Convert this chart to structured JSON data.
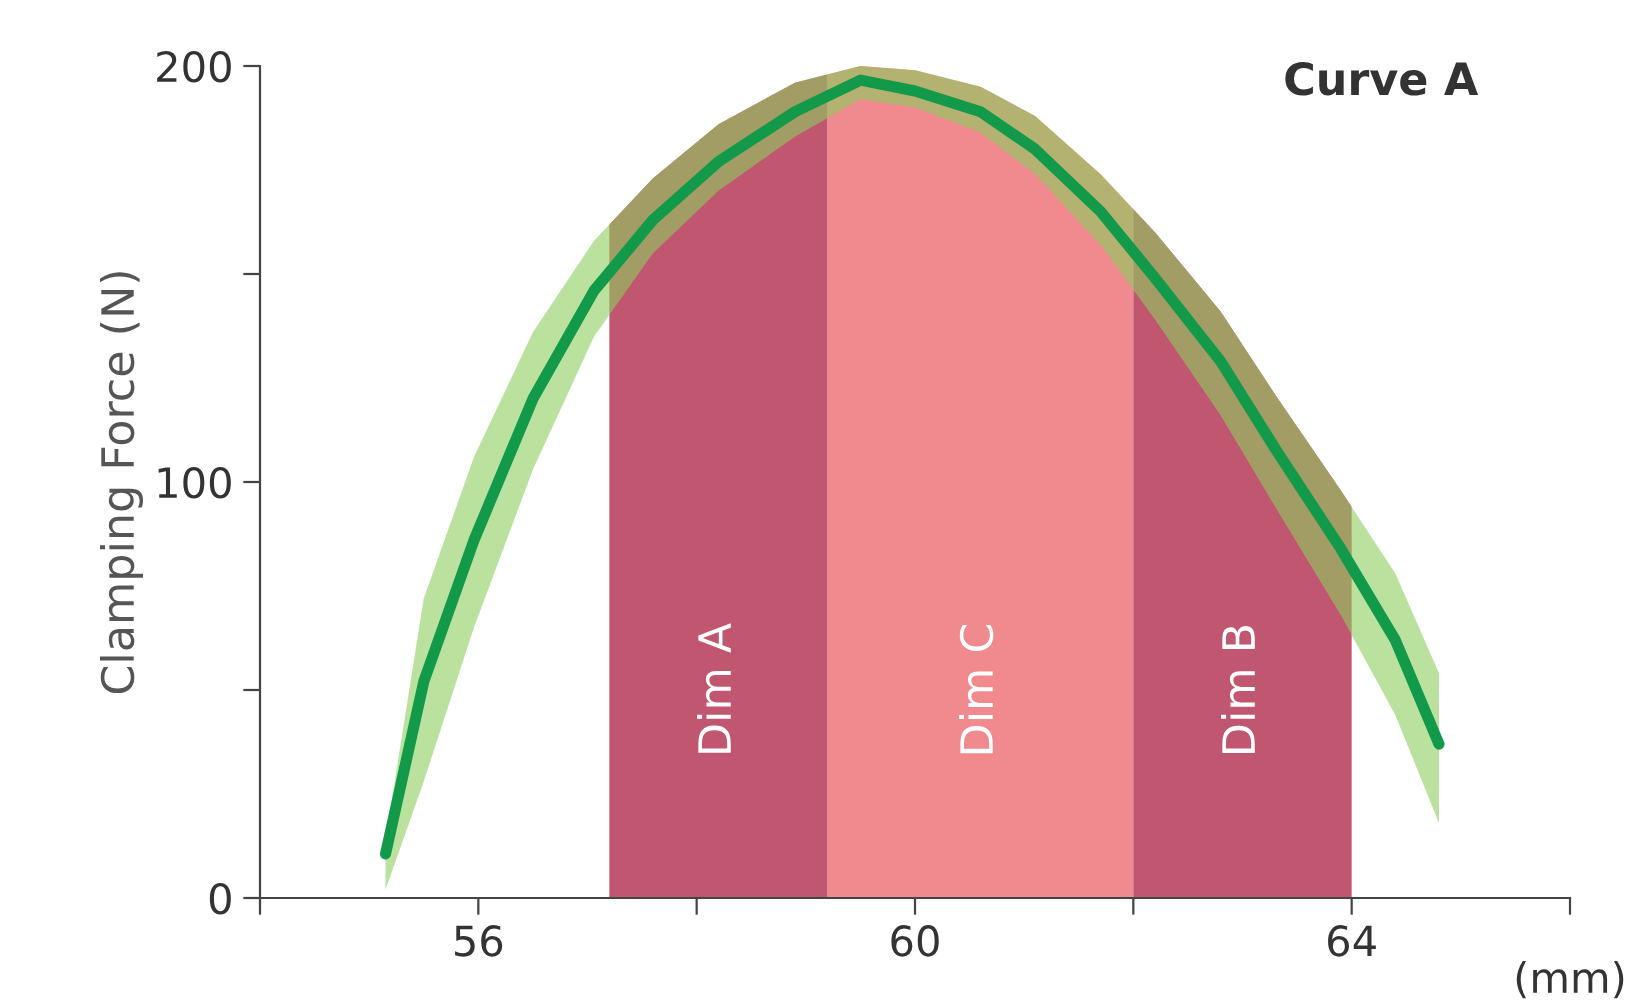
{
  "chart_data": {
    "type": "line",
    "title": "Curve A",
    "xlabel": "(mm)",
    "ylabel": "Clamping Force (N)",
    "xlim": [
      54,
      66
    ],
    "xticks": [
      {
        "value": 54,
        "label": null
      },
      56,
      {
        "value": 58,
        "label": null
      },
      60,
      {
        "value": 62,
        "label": null
      },
      64,
      {
        "value": 66,
        "label": null
      }
    ],
    "ylim": [
      0,
      200
    ],
    "yticks": [
      0,
      {
        "value": 50,
        "label": null
      },
      100,
      {
        "value": 150,
        "label": null
      },
      200
    ],
    "grid": false,
    "legend": false,
    "series": [
      {
        "color": "#12994a",
        "x": [
          55.15,
          55.5,
          55.96,
          56.5,
          57.06,
          57.6,
          58.2,
          58.9,
          59.5,
          60,
          60.6,
          61.1,
          61.7,
          62.2,
          62.8,
          63.3,
          63.9,
          64.4,
          64.8
        ],
        "values": [
          10.6,
          52,
          86,
          120,
          146,
          163,
          177,
          189,
          196.6,
          194,
          189,
          180,
          165,
          149,
          129,
          108,
          84,
          62,
          37
        ],
        "lower": [
          2,
          28,
          65,
          103,
          135,
          155,
          170,
          183,
          192,
          190,
          184,
          174,
          157,
          139,
          116,
          94,
          68,
          44,
          18
        ],
        "upper": [
          14,
          72,
          106,
          136,
          158,
          173,
          186,
          196,
          200,
          199,
          195,
          188,
          174,
          160,
          141,
          121,
          98,
          78,
          54
        ]
      }
    ],
    "bands": [
      {
        "axis": "x",
        "from": 57.2,
        "to": 59.2,
        "label": "Dim A",
        "color": "#c0566f"
      },
      {
        "axis": "x",
        "from": 59.2,
        "to": 62.0,
        "label": "Dim C",
        "color": "#f08a8e"
      },
      {
        "axis": "x",
        "from": 62.0,
        "to": 64.0,
        "label": "Dim B",
        "color": "#c0566f"
      }
    ]
  }
}
